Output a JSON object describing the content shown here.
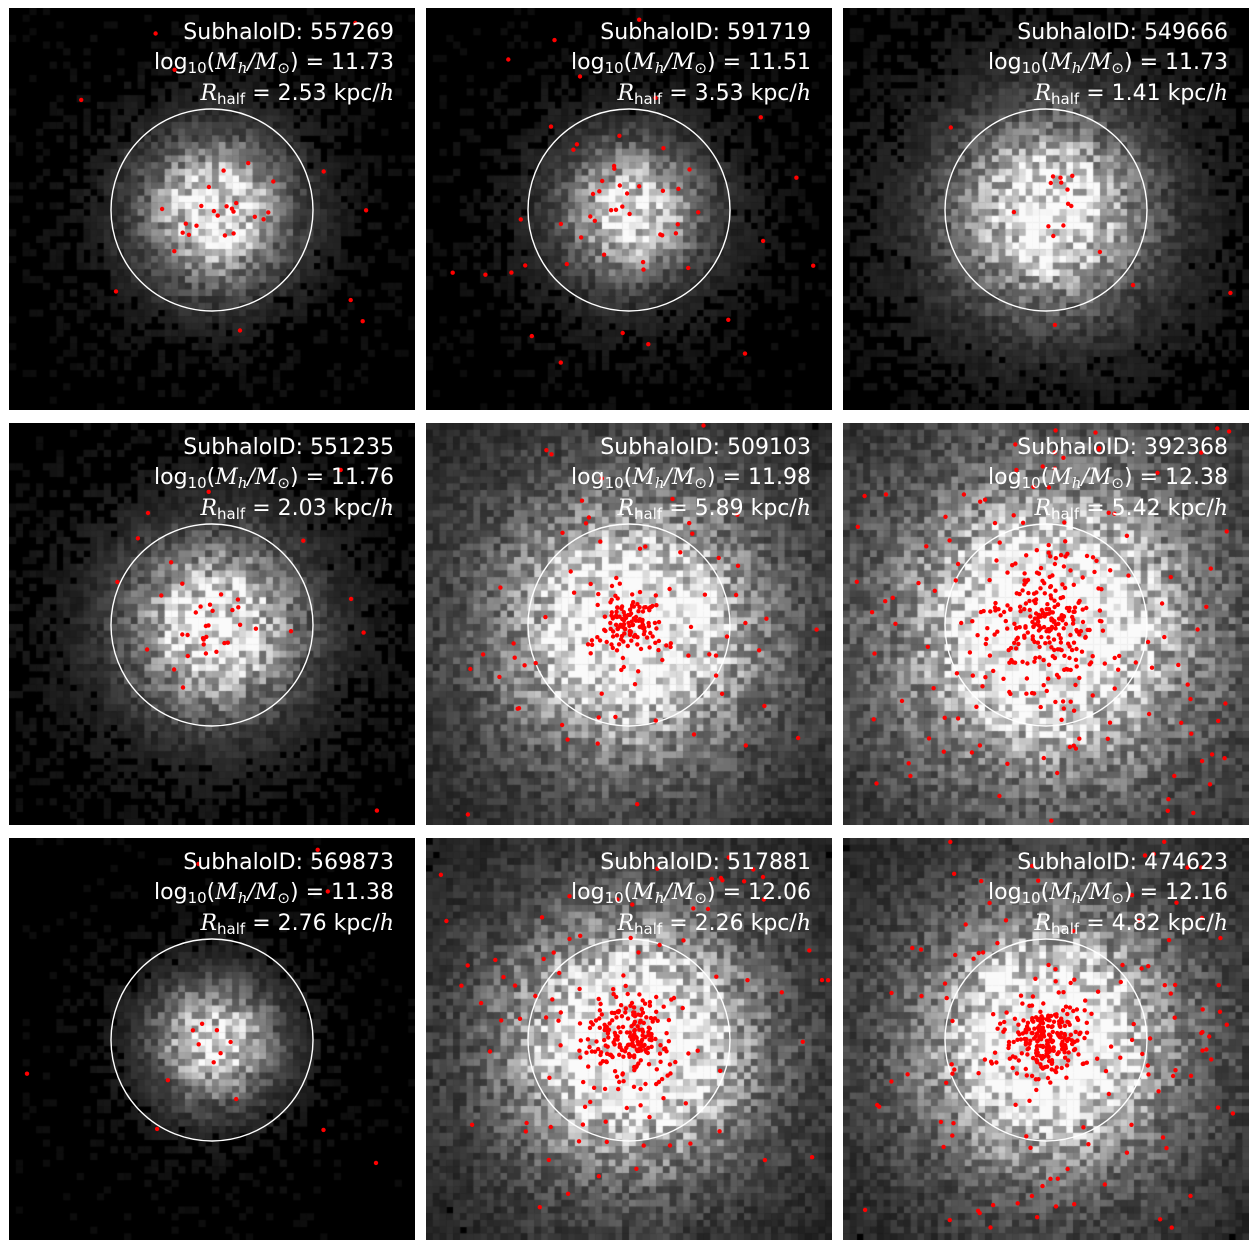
{
  "label_prefix": {
    "id": "SubhaloID: ",
    "log": "log",
    "log_sub": "10",
    "lparen": "(",
    "mass_M": "M",
    "mass_h": "h",
    "slash": "/",
    "sun_M": "M",
    "sun_sub": "⊙",
    "rparen": ")",
    "eq": " = ",
    "r_R": "R",
    "r_sub": "half",
    "r_unit": " kpc/",
    "r_unit_h": "h"
  },
  "panels": [
    {
      "id": "557269",
      "logM": "11.73",
      "rhalf": "2.53",
      "blob": 0.95,
      "spread": 0.55,
      "bg": 0.1,
      "nred": 35,
      "redSpread": 0.55
    },
    {
      "id": "591719",
      "logM": "11.51",
      "rhalf": "3.53",
      "blob": 0.85,
      "spread": 0.5,
      "bg": 0.12,
      "nred": 55,
      "redSpread": 0.6
    },
    {
      "id": "549666",
      "logM": "11.73",
      "rhalf": "1.41",
      "blob": 0.95,
      "spread": 0.85,
      "bg": 0.14,
      "nred": 18,
      "redSpread": 0.45
    },
    {
      "id": "551235",
      "logM": "11.76",
      "rhalf": "2.03",
      "blob": 0.95,
      "spread": 0.7,
      "bg": 0.14,
      "nred": 40,
      "redSpread": 0.55
    },
    {
      "id": "509103",
      "logM": "11.98",
      "rhalf": "5.89",
      "blob": 0.9,
      "spread": 1.1,
      "bg": 0.4,
      "nred": 220,
      "redSpread": 0.35
    },
    {
      "id": "392368",
      "logM": "12.38",
      "rhalf": "5.42",
      "blob": 0.9,
      "spread": 1.2,
      "bg": 0.5,
      "nred": 420,
      "redSpread": 0.6
    },
    {
      "id": "569873",
      "logM": "11.38",
      "rhalf": "2.76",
      "blob": 0.85,
      "spread": 0.45,
      "bg": 0.06,
      "nred": 18,
      "redSpread": 0.4
    },
    {
      "id": "517881",
      "logM": "12.06",
      "rhalf": "2.26",
      "blob": 1.0,
      "spread": 1.1,
      "bg": 0.35,
      "nred": 300,
      "redSpread": 0.5
    },
    {
      "id": "474623",
      "logM": "12.16",
      "rhalf": "4.82",
      "blob": 0.95,
      "spread": 1.05,
      "bg": 0.42,
      "nred": 380,
      "redSpread": 0.45
    }
  ],
  "colors": {
    "background": "#000000",
    "circle": "#ffffff",
    "points": "#ff0000",
    "text": "#ffffff"
  }
}
